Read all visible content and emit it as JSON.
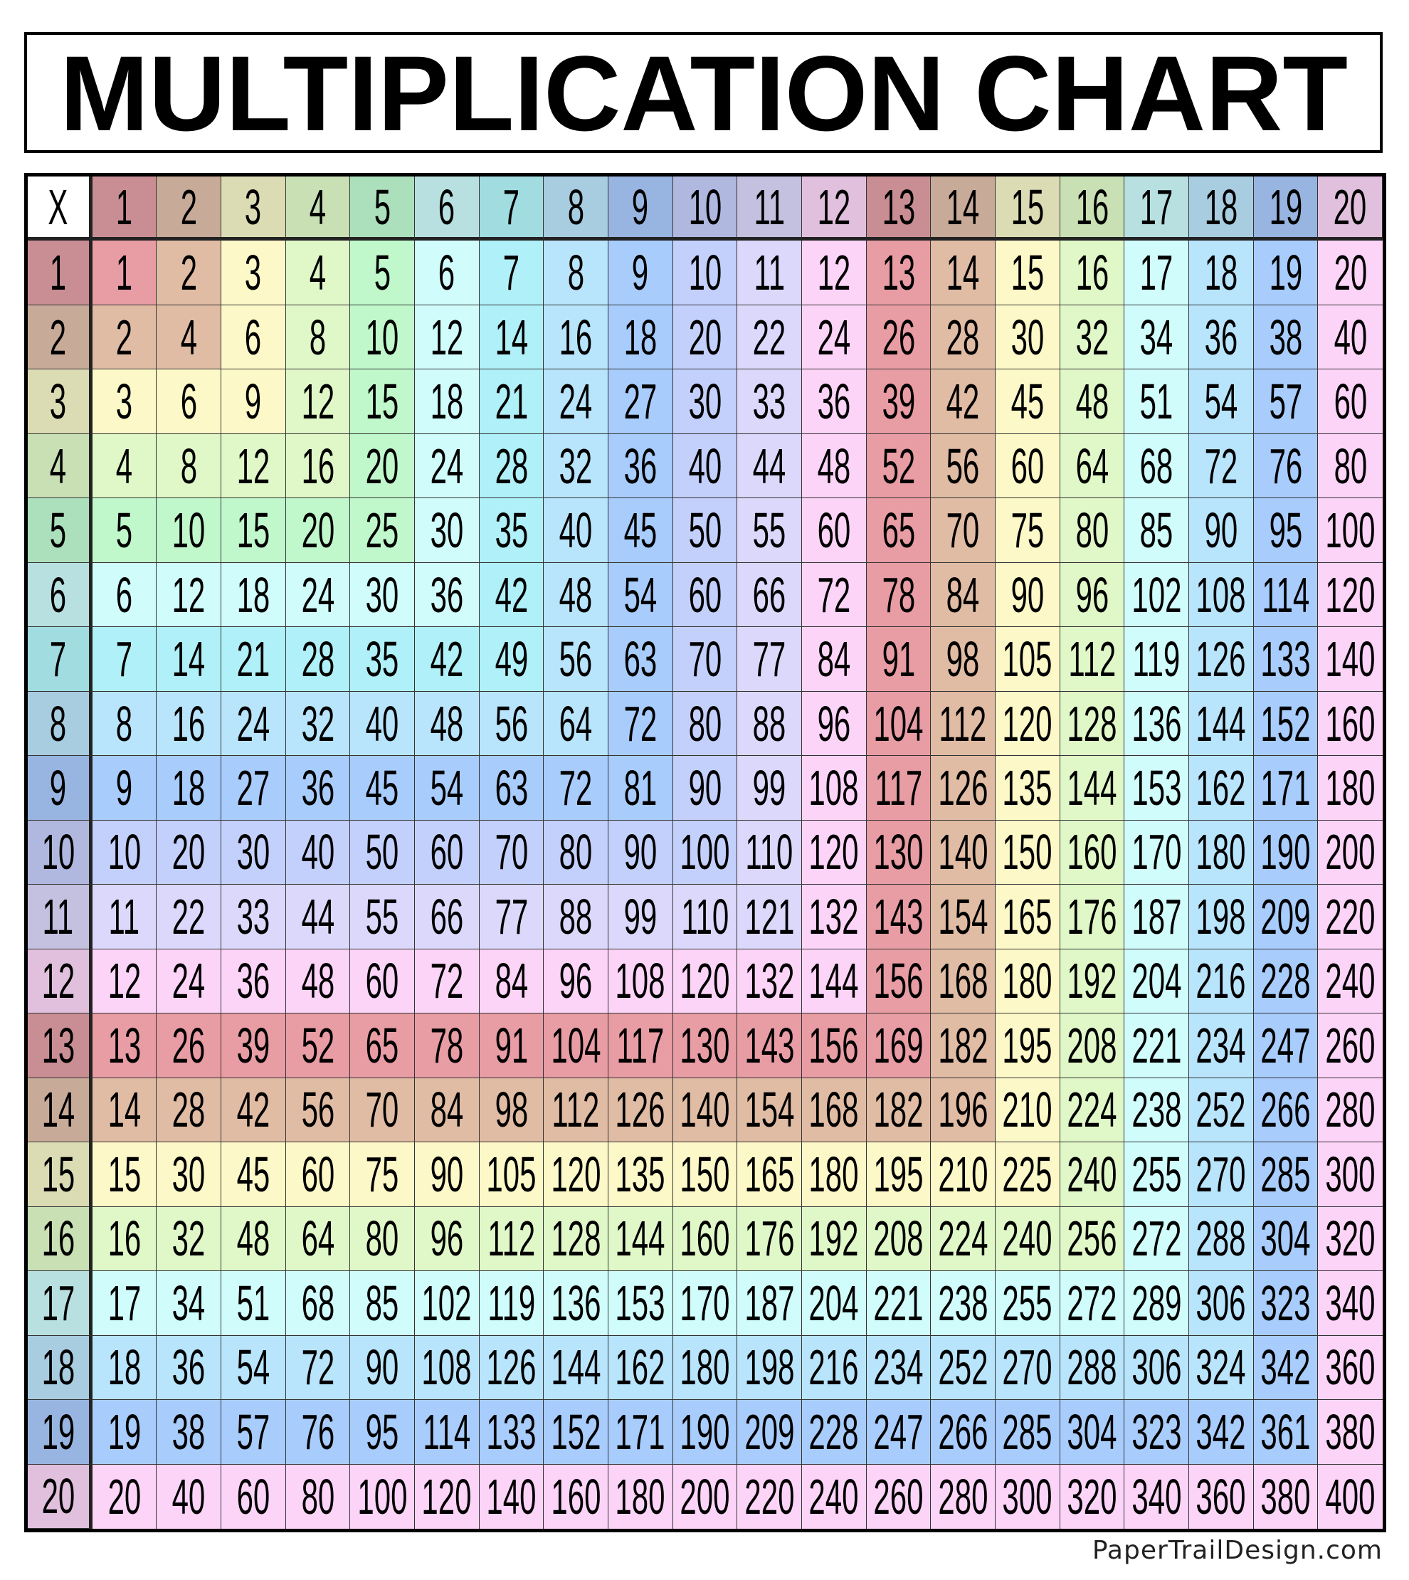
{
  "title": "MULTIPLICATION CHART",
  "corner_label": "X",
  "header_numbers": [
    1,
    2,
    3,
    4,
    5,
    6,
    7,
    8,
    9,
    10,
    11,
    12,
    13,
    14,
    15,
    16,
    17,
    18,
    19,
    20
  ],
  "colors": {
    "header": [
      "#c98e94",
      "#c8aa98",
      "#dcdcb4",
      "#c8e0b4",
      "#ace0bc",
      "#b8e0e0",
      "#a0dce0",
      "#a8cce0",
      "#98b4e0",
      "#b0b8e0",
      "#c4c0e0",
      "#e0c0dc",
      "#c98e94",
      "#c8aa98",
      "#dcdcb4",
      "#c8e0b4",
      "#b8e0e0",
      "#a8cce0",
      "#98b4e0",
      "#e0c0dc"
    ],
    "cell": [
      "#e89ca4",
      "#e0bca4",
      "#fcf8c8",
      "#e0f8c8",
      "#c0f8cc",
      "#d0fcfc",
      "#b0f0f8",
      "#b8e4fc",
      "#a8ccfc",
      "#c4d0fc",
      "#dcd8fc",
      "#fcd4f8",
      "#e89ca4",
      "#e0bca4",
      "#fcf8c8",
      "#e0f8c8",
      "#d0fcfc",
      "#b8e4fc",
      "#a8ccfc",
      "#fcd4f8"
    ]
  },
  "rows": [
    [
      1,
      2,
      3,
      4,
      5,
      6,
      7,
      8,
      9,
      10,
      11,
      12,
      13,
      14,
      15,
      16,
      17,
      18,
      19,
      20
    ],
    [
      2,
      4,
      6,
      8,
      10,
      12,
      14,
      16,
      18,
      20,
      22,
      24,
      26,
      28,
      30,
      32,
      34,
      36,
      38,
      40
    ],
    [
      3,
      6,
      9,
      12,
      15,
      18,
      21,
      24,
      27,
      30,
      33,
      36,
      39,
      42,
      45,
      48,
      51,
      54,
      57,
      60
    ],
    [
      4,
      8,
      12,
      16,
      20,
      24,
      28,
      32,
      36,
      40,
      44,
      48,
      52,
      56,
      60,
      64,
      68,
      72,
      76,
      80
    ],
    [
      5,
      10,
      15,
      20,
      25,
      30,
      35,
      40,
      45,
      50,
      55,
      60,
      65,
      70,
      75,
      80,
      85,
      90,
      95,
      100
    ],
    [
      6,
      12,
      18,
      24,
      30,
      36,
      42,
      48,
      54,
      60,
      66,
      72,
      78,
      84,
      90,
      96,
      102,
      108,
      114,
      120
    ],
    [
      7,
      14,
      21,
      28,
      35,
      42,
      49,
      56,
      63,
      70,
      77,
      84,
      91,
      98,
      105,
      112,
      119,
      126,
      133,
      140
    ],
    [
      8,
      16,
      24,
      32,
      40,
      48,
      56,
      64,
      72,
      80,
      88,
      96,
      104,
      112,
      120,
      128,
      136,
      144,
      152,
      160
    ],
    [
      9,
      18,
      27,
      36,
      45,
      54,
      63,
      72,
      81,
      90,
      99,
      108,
      117,
      126,
      135,
      144,
      153,
      162,
      171,
      180
    ],
    [
      10,
      20,
      30,
      40,
      50,
      60,
      70,
      80,
      90,
      100,
      110,
      120,
      130,
      140,
      150,
      160,
      170,
      180,
      190,
      200
    ],
    [
      11,
      22,
      33,
      44,
      55,
      66,
      77,
      88,
      99,
      110,
      121,
      132,
      143,
      154,
      165,
      176,
      187,
      198,
      209,
      220
    ],
    [
      12,
      24,
      36,
      48,
      60,
      72,
      84,
      96,
      108,
      120,
      132,
      144,
      156,
      168,
      180,
      192,
      204,
      216,
      228,
      240
    ],
    [
      13,
      26,
      39,
      52,
      65,
      78,
      91,
      104,
      117,
      130,
      143,
      156,
      169,
      182,
      195,
      208,
      221,
      234,
      247,
      260
    ],
    [
      14,
      28,
      42,
      56,
      70,
      84,
      98,
      112,
      126,
      140,
      154,
      168,
      182,
      196,
      210,
      224,
      238,
      252,
      266,
      280
    ],
    [
      15,
      30,
      45,
      60,
      75,
      90,
      105,
      120,
      135,
      150,
      165,
      180,
      195,
      210,
      225,
      240,
      255,
      270,
      285,
      300
    ],
    [
      16,
      32,
      48,
      64,
      80,
      96,
      112,
      128,
      144,
      160,
      176,
      192,
      208,
      224,
      240,
      256,
      272,
      288,
      304,
      320
    ],
    [
      17,
      34,
      51,
      68,
      85,
      102,
      119,
      136,
      153,
      170,
      187,
      204,
      221,
      238,
      255,
      272,
      289,
      306,
      323,
      340
    ],
    [
      18,
      36,
      54,
      72,
      90,
      108,
      126,
      144,
      162,
      180,
      198,
      216,
      234,
      252,
      270,
      288,
      306,
      324,
      342,
      360
    ],
    [
      19,
      38,
      57,
      76,
      95,
      114,
      133,
      152,
      171,
      190,
      209,
      228,
      247,
      266,
      285,
      304,
      323,
      342,
      361,
      380
    ],
    [
      20,
      40,
      60,
      80,
      100,
      120,
      140,
      160,
      180,
      200,
      220,
      240,
      260,
      280,
      300,
      320,
      340,
      360,
      380,
      400
    ]
  ],
  "footer": "PaperTrailDesign.com"
}
